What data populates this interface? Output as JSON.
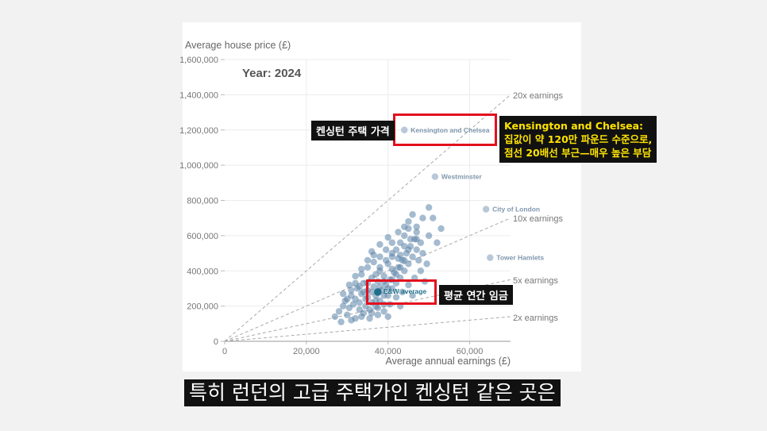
{
  "chart_data": {
    "type": "scatter",
    "title": "Year: 2024",
    "ylabel": "Average house price (£)",
    "xlabel": "Average annual earnings (£)",
    "xlim": [
      0,
      70000
    ],
    "ylim": [
      0,
      1600000
    ],
    "x_ticks": [
      0,
      20000,
      40000,
      60000
    ],
    "x_tick_labels": [
      "0",
      "20,000",
      "40,000",
      "60,000"
    ],
    "y_ticks": [
      0,
      200000,
      400000,
      600000,
      800000,
      1000000,
      1200000,
      1400000,
      1600000
    ],
    "y_tick_labels": [
      "0",
      "200,000",
      "400,000",
      "600,000",
      "800,000",
      "1,000,000",
      "1,200,000",
      "1,400,000",
      "1,600,000"
    ],
    "grid": true,
    "reference_lines": [
      {
        "label": "20x earnings",
        "multiple": 20
      },
      {
        "label": "10x earnings",
        "multiple": 10
      },
      {
        "label": "5x earnings",
        "multiple": 5
      },
      {
        "label": "2x earnings",
        "multiple": 2
      }
    ],
    "labeled_points": [
      {
        "label": "Kensington and Chelsea",
        "x": 44000,
        "y": 1200000
      },
      {
        "label": "Westminster",
        "x": 51500,
        "y": 935000
      },
      {
        "label": "City of London",
        "x": 64000,
        "y": 750000
      },
      {
        "label": "Tower Hamlets",
        "x": 65000,
        "y": 475000
      },
      {
        "label": "E&W average",
        "x": 37500,
        "y": 280000,
        "highlight": true
      }
    ],
    "points": [
      [
        27000,
        140000
      ],
      [
        28000,
        170000
      ],
      [
        29000,
        200000
      ],
      [
        29500,
        230000
      ],
      [
        30000,
        150000
      ],
      [
        30500,
        190000
      ],
      [
        31000,
        260000
      ],
      [
        31500,
        210000
      ],
      [
        32000,
        130000
      ],
      [
        32000,
        240000
      ],
      [
        32500,
        300000
      ],
      [
        33000,
        180000
      ],
      [
        33000,
        220000
      ],
      [
        33500,
        270000
      ],
      [
        34000,
        160000
      ],
      [
        34000,
        330000
      ],
      [
        34500,
        200000
      ],
      [
        35000,
        250000
      ],
      [
        35000,
        290000
      ],
      [
        35500,
        180000
      ],
      [
        36000,
        220000
      ],
      [
        36000,
        360000
      ],
      [
        36500,
        310000
      ],
      [
        37000,
        200000
      ],
      [
        37000,
        260000
      ],
      [
        37500,
        340000
      ],
      [
        38000,
        230000
      ],
      [
        38000,
        400000
      ],
      [
        38500,
        290000
      ],
      [
        39000,
        210000
      ],
      [
        39000,
        370000
      ],
      [
        39500,
        320000
      ],
      [
        40000,
        260000
      ],
      [
        40000,
        440000
      ],
      [
        40500,
        350000
      ],
      [
        41000,
        300000
      ],
      [
        41000,
        480000
      ],
      [
        41500,
        390000
      ],
      [
        42000,
        330000
      ],
      [
        42000,
        520000
      ],
      [
        42500,
        420000
      ],
      [
        43000,
        360000
      ],
      [
        43000,
        560000
      ],
      [
        43500,
        460000
      ],
      [
        44000,
        400000
      ],
      [
        44000,
        600000
      ],
      [
        44500,
        500000
      ],
      [
        45000,
        440000
      ],
      [
        45000,
        640000
      ],
      [
        45500,
        540000
      ],
      [
        46000,
        480000
      ],
      [
        46500,
        580000
      ],
      [
        47000,
        520000
      ],
      [
        47500,
        460000
      ],
      [
        48000,
        560000
      ],
      [
        33000,
        310000
      ],
      [
        34000,
        280000
      ],
      [
        35000,
        330000
      ],
      [
        36000,
        280000
      ],
      [
        37000,
        230000
      ],
      [
        38000,
        310000
      ],
      [
        39000,
        260000
      ],
      [
        40000,
        300000
      ],
      [
        41000,
        350000
      ],
      [
        42000,
        380000
      ],
      [
        43000,
        420000
      ],
      [
        44000,
        460000
      ],
      [
        30000,
        240000
      ],
      [
        31000,
        290000
      ],
      [
        32000,
        330000
      ],
      [
        33500,
        380000
      ],
      [
        35000,
        420000
      ],
      [
        36500,
        450000
      ],
      [
        38000,
        480000
      ],
      [
        39500,
        520000
      ],
      [
        41000,
        560000
      ],
      [
        42500,
        620000
      ],
      [
        44000,
        650000
      ],
      [
        40000,
        590000
      ],
      [
        38000,
        550000
      ],
      [
        36000,
        510000
      ],
      [
        45000,
        680000
      ],
      [
        47000,
        620000
      ],
      [
        48500,
        500000
      ],
      [
        50000,
        600000
      ],
      [
        51000,
        700000
      ],
      [
        52000,
        560000
      ],
      [
        50000,
        760000
      ],
      [
        53000,
        640000
      ],
      [
        46000,
        720000
      ],
      [
        34500,
        240000
      ],
      [
        36000,
        160000
      ],
      [
        37500,
        190000
      ],
      [
        39000,
        170000
      ],
      [
        40500,
        210000
      ],
      [
        42000,
        250000
      ],
      [
        43500,
        280000
      ],
      [
        45000,
        320000
      ],
      [
        46500,
        360000
      ],
      [
        48000,
        400000
      ],
      [
        49500,
        440000
      ],
      [
        29000,
        270000
      ],
      [
        30500,
        320000
      ],
      [
        32000,
        370000
      ],
      [
        33500,
        410000
      ],
      [
        35000,
        460000
      ],
      [
        36500,
        490000
      ],
      [
        38000,
        420000
      ],
      [
        39500,
        460000
      ],
      [
        41000,
        500000
      ],
      [
        42500,
        470000
      ],
      [
        44000,
        540000
      ],
      [
        45500,
        580000
      ],
      [
        47000,
        650000
      ],
      [
        48500,
        700000
      ],
      [
        28500,
        110000
      ],
      [
        31000,
        120000
      ],
      [
        33500,
        140000
      ],
      [
        35500,
        130000
      ],
      [
        37500,
        150000
      ],
      [
        40000,
        140000
      ],
      [
        43000,
        200000
      ],
      [
        46000,
        260000
      ],
      [
        49000,
        340000
      ],
      [
        37000,
        380000
      ],
      [
        39000,
        340000
      ],
      [
        41000,
        410000
      ],
      [
        43000,
        490000
      ],
      [
        45000,
        520000
      ],
      [
        47000,
        580000
      ]
    ]
  },
  "annotations": {
    "kensington_tag": "켄싱턴 주택 가격",
    "kensington_box_title": "Kensington and Chelsea:",
    "kensington_box_line1": "집값이 약 120만 파운드 수준으로,",
    "kensington_box_line2": "점선 20배선 부근—매우 높은 부담",
    "average_tag": "평균 연간 임금"
  },
  "subtitle": "특히 런던의 고급 주택가인 켄싱턴 같은 곳은",
  "colors": {
    "point": "#5b83a8",
    "point_light": "#b8c8d8",
    "highlight": "#1f6f8b",
    "red_box": "#e3101e",
    "callout_yellow": "#ffe400"
  }
}
